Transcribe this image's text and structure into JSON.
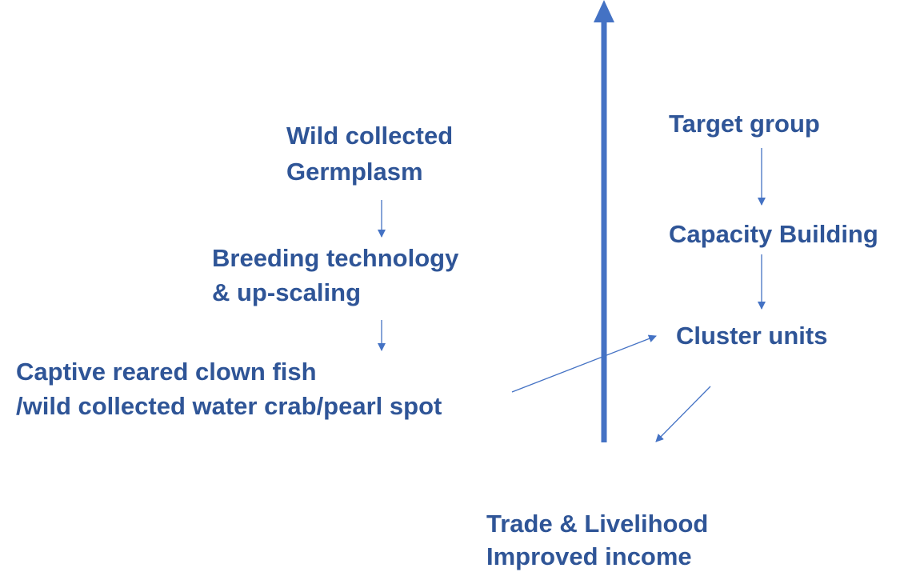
{
  "nodes": [
    {
      "lines": [
        "Wild collected",
        "Germplasm"
      ]
    },
    {
      "lines": [
        "Breeding technology",
        "& up-scaling"
      ]
    },
    {
      "lines": [
        "Captive reared clown fish",
        "/wild collected water crab/pearl spot"
      ]
    },
    {
      "lines": [
        "Target group"
      ]
    },
    {
      "lines": [
        "Capacity Building"
      ]
    },
    {
      "lines": [
        "Cluster units"
      ]
    },
    {
      "lines": [
        "Trade & Livelihood",
        "Improved income"
      ]
    }
  ]
}
